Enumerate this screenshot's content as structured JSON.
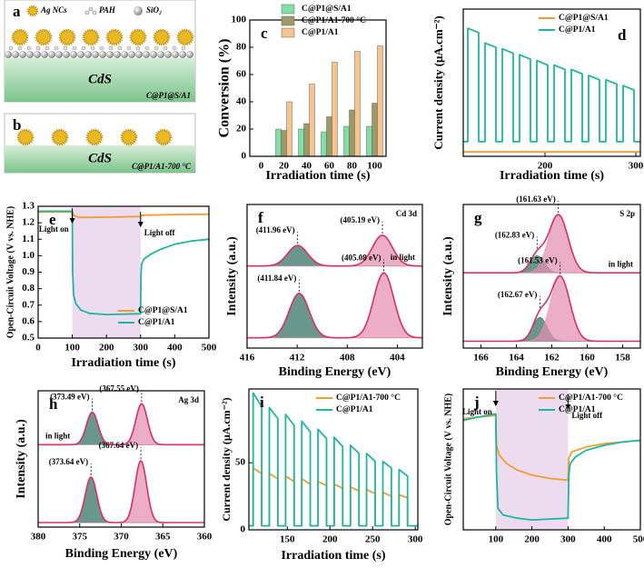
{
  "schematics": [
    {
      "panel": "a",
      "legend": [
        "Ag NCs",
        "PAH",
        "SiO₂"
      ],
      "substrate": "CdS",
      "sample": "C@P1@S/A1"
    },
    {
      "panel": "b",
      "substrate": "CdS",
      "sample": "C@P1/A1-700 °C"
    }
  ],
  "chart_data": [
    {
      "panel": "c",
      "type": "bar",
      "xlabel": "Irradiation time (s)",
      "ylabel": "Conversion (%)",
      "categories": [
        "0",
        "20",
        "40",
        "60",
        "80",
        "100"
      ],
      "series": [
        {
          "name": "C@P1@S/A1",
          "color": "#7ee0a6",
          "values": [
            0,
            20,
            20,
            18,
            22,
            22
          ]
        },
        {
          "name": "C@P1/A1-700 °C",
          "color": "#9c9a68",
          "values": [
            0,
            19,
            24,
            29,
            34,
            39
          ]
        },
        {
          "name": "C@P1/A1",
          "color": "#f6c48c",
          "values": [
            0,
            40,
            53,
            69,
            77,
            81
          ]
        }
      ],
      "ylim": [
        0,
        100
      ],
      "yticks": [
        0,
        20,
        40,
        60,
        80,
        100
      ],
      "legend": "upper center"
    },
    {
      "panel": "d",
      "type": "line",
      "xlabel": "Irradiation time (s)",
      "ylabel": "Current density (μA.cm⁻²)",
      "xlim": [
        110,
        305
      ],
      "xticks": [
        200,
        300
      ],
      "ylim": [
        0,
        100
      ],
      "legend": "upper right",
      "series": [
        {
          "name": "C@P1@S/A1",
          "color": "#f39c32",
          "x": [
            110,
            305
          ],
          "values": [
            3,
            3
          ]
        },
        {
          "name": "C@P1/A1",
          "color": "#1fb5a3",
          "x": [
            110,
            115,
            115,
            127,
            127,
            134,
            134,
            146,
            146,
            153,
            153,
            165,
            165,
            172,
            172,
            184,
            184,
            191,
            191,
            203,
            203,
            210,
            210,
            222,
            222,
            229,
            229,
            241,
            241,
            248,
            248,
            260,
            260,
            267,
            267,
            279,
            279,
            286,
            286,
            298,
            298,
            305
          ],
          "values": [
            10,
            10,
            87,
            84,
            10,
            10,
            77,
            74,
            10,
            10,
            73,
            70,
            10,
            10,
            69,
            66,
            10,
            10,
            65,
            62,
            10,
            10,
            62,
            59,
            10,
            10,
            59,
            56,
            10,
            10,
            55,
            52,
            10,
            10,
            52,
            49,
            10,
            10,
            48,
            45,
            10,
            10
          ]
        }
      ]
    },
    {
      "panel": "e",
      "type": "line",
      "xlabel": "Irradiation time (s)",
      "ylabel": "Open-Circuit Voltage (V vs. NHE)",
      "xlim": [
        0,
        500
      ],
      "xticks": [
        0,
        100,
        200,
        300,
        400,
        500
      ],
      "ylim": [
        0.5,
        1.3
      ],
      "yticks": [
        0.5,
        0.6,
        0.7,
        0.8,
        0.9,
        {
          "value": 1,
          "label": "1.0"
        },
        1.1,
        1.2,
        1.3
      ],
      "legend": "lower right",
      "shade": [
        100,
        300
      ],
      "annotations": [
        "Light on",
        "Light off"
      ],
      "series": [
        {
          "name": "C@P1@S/A1",
          "color": "#f39c32",
          "x": [
            0,
            100,
            105,
            120,
            200,
            300,
            305,
            400,
            500
          ],
          "values": [
            1.265,
            1.265,
            1.245,
            1.232,
            1.234,
            1.238,
            1.246,
            1.25,
            1.252
          ]
        },
        {
          "name": "C@P1/A1",
          "color": "#1fb5a3",
          "x": [
            0,
            100,
            101,
            104,
            110,
            125,
            150,
            200,
            250,
            300,
            301,
            303,
            310,
            330,
            360,
            400,
            450,
            500
          ],
          "values": [
            1.27,
            1.27,
            0.9,
            0.76,
            0.71,
            0.67,
            0.65,
            0.643,
            0.645,
            0.648,
            0.88,
            0.95,
            0.98,
            1.01,
            1.04,
            1.07,
            1.09,
            1.1
          ]
        }
      ]
    },
    {
      "panel": "f",
      "type": "xps",
      "tag": "Cd 3d",
      "xlabel": "Binding Energy (eV)",
      "ylabel": "Intensity (a.u.)",
      "xlim": [
        416,
        402
      ],
      "xticks": [
        416,
        412,
        408,
        404
      ],
      "ylim": [
        0,
        2.1
      ],
      "spectra": [
        {
          "label": "in light",
          "offset": 1.2,
          "color": "#d9305f",
          "peaks": [
            {
              "center": 411.96,
              "label": "(411.96 eV)",
              "height": 0.3,
              "width": 0.8,
              "color": "#2f6f62"
            },
            {
              "center": 405.19,
              "label": "(405.19 eV)",
              "height": 0.45,
              "width": 0.8,
              "color": "#e58fb0"
            }
          ]
        },
        {
          "offset": 0.15,
          "color": "#d9305f",
          "peaks": [
            {
              "center": 411.84,
              "label": "(411.84 eV)",
              "height": 0.65,
              "width": 0.8,
              "color": "#2f6f62"
            },
            {
              "center": 405.08,
              "label": "(405.08 eV)",
              "height": 0.95,
              "width": 0.8,
              "color": "#e58fb0"
            }
          ]
        }
      ]
    },
    {
      "panel": "g",
      "type": "xps",
      "tag": "S 2p",
      "xlabel": "Binding Energy (eV)",
      "ylabel": "Intensity (a.u.)",
      "xlim": [
        167,
        157
      ],
      "xticks": [
        166,
        164,
        162,
        160,
        158
      ],
      "ylim": [
        0,
        2.1
      ],
      "spectra": [
        {
          "label": "in light",
          "offset": 1.1,
          "color": "#d9305f",
          "peaks": [
            {
              "center": 162.83,
              "label": "(162.83 eV)",
              "height": 0.25,
              "width": 0.4,
              "color": "#2f6f62"
            },
            {
              "center": 161.63,
              "label": "(161.63 eV)",
              "height": 0.85,
              "width": 0.55,
              "color": "#e58fb0"
            }
          ]
        },
        {
          "offset": 0.1,
          "color": "#d9305f",
          "peaks": [
            {
              "center": 162.67,
              "label": "(162.67 eV)",
              "height": 0.35,
              "width": 0.4,
              "color": "#2f6f62"
            },
            {
              "center": 161.53,
              "label": "(161.53 eV)",
              "height": 0.95,
              "width": 0.55,
              "color": "#e58fb0"
            }
          ]
        }
      ]
    },
    {
      "panel": "h",
      "type": "xps",
      "tag": "Ag 3d",
      "xlabel": "Binding Energy (eV)",
      "ylabel": "Intensity (a.u.)",
      "xlim": [
        380,
        360
      ],
      "xticks": [
        380,
        375,
        370,
        365,
        360
      ],
      "ylim": [
        0,
        2.1
      ],
      "spectra": [
        {
          "label": "in light",
          "offset": 1.27,
          "color": "#d9305f",
          "peaks": [
            {
              "center": 373.49,
              "label": "(373.49 eV)",
              "height": 0.5,
              "width": 0.7,
              "color": "#2f6f62"
            },
            {
              "center": 367.55,
              "label": "(367.55 eV)",
              "height": 0.63,
              "width": 0.7,
              "color": "#e58fb0"
            }
          ]
        },
        {
          "offset": 0.07,
          "color": "#d9305f",
          "peaks": [
            {
              "center": 373.64,
              "label": "(373.64 eV)",
              "height": 0.7,
              "width": 0.7,
              "color": "#2f6f62"
            },
            {
              "center": 367.64,
              "label": "(367.64 eV)",
              "height": 0.95,
              "width": 0.7,
              "color": "#e58fb0"
            }
          ]
        }
      ]
    },
    {
      "panel": "i",
      "type": "line",
      "xlabel": "Irradiation time (s)",
      "ylabel": "Current density (μA.cm⁻²)",
      "xlim": [
        105,
        303
      ],
      "xticks": [
        150,
        200,
        250,
        300
      ],
      "ylim": [
        0,
        105
      ],
      "yticks": [
        0,
        50
      ],
      "legend": "upper right",
      "series": [
        {
          "name": "C@P1/A1-700 °C",
          "color": "#f39c32",
          "x": [
            105,
            110,
            110,
            120,
            120,
            129,
            129,
            139,
            139,
            148,
            148,
            158,
            158,
            167,
            167,
            177,
            177,
            186,
            186,
            196,
            196,
            205,
            205,
            215,
            215,
            224,
            224,
            234,
            234,
            243,
            243,
            253,
            253,
            262,
            262,
            272,
            272,
            281,
            281,
            291,
            291,
            303
          ],
          "values": [
            3,
            3,
            46,
            42,
            3,
            3,
            42,
            38,
            3,
            3,
            40,
            36,
            3,
            3,
            38,
            34,
            3,
            3,
            36,
            33,
            3,
            3,
            34,
            31,
            3,
            3,
            32,
            29,
            3,
            3,
            30,
            27,
            3,
            3,
            28,
            25,
            3,
            3,
            26,
            24,
            3,
            3
          ]
        },
        {
          "name": "C@P1/A1",
          "color": "#1fb5a3",
          "x": [
            105,
            110,
            110,
            120,
            120,
            129,
            129,
            139,
            139,
            148,
            148,
            158,
            158,
            167,
            167,
            177,
            177,
            186,
            186,
            196,
            196,
            205,
            205,
            215,
            215,
            224,
            224,
            234,
            234,
            243,
            243,
            253,
            253,
            262,
            262,
            272,
            272,
            281,
            281,
            291,
            291,
            303
          ],
          "values": [
            3,
            3,
            102,
            92,
            3,
            3,
            91,
            83,
            3,
            3,
            86,
            78,
            3,
            3,
            81,
            73,
            3,
            3,
            75,
            68,
            3,
            3,
            69,
            62,
            3,
            3,
            63,
            57,
            3,
            3,
            57,
            51,
            3,
            3,
            51,
            46,
            3,
            3,
            45,
            40,
            3,
            3
          ]
        }
      ]
    },
    {
      "panel": "j",
      "type": "line",
      "ylabel": "Open-Circuit Voltage (V vs. NHE)",
      "xlim": [
        10,
        500
      ],
      "xticks": [
        100,
        200,
        300,
        400,
        500
      ],
      "ylim": [
        -0.25,
        0.6
      ],
      "legend": "upper right",
      "shade": [
        100,
        300
      ],
      "annotations": [
        "Light on",
        "Light off"
      ],
      "series": [
        {
          "name": "C@P1/A1-700 °C",
          "color": "#f39c32",
          "x": [
            10,
            50,
            100,
            102,
            110,
            130,
            160,
            200,
            250,
            300,
            302,
            310,
            350,
            400,
            450,
            500
          ],
          "values": [
            0.42,
            0.43,
            0.44,
            0.26,
            0.2,
            0.15,
            0.11,
            0.08,
            0.06,
            0.05,
            0.18,
            0.22,
            0.25,
            0.27,
            0.28,
            0.29
          ]
        },
        {
          "name": "C@P1/A1",
          "color": "#1fb5a3",
          "x": [
            10,
            50,
            100,
            102,
            106,
            120,
            160,
            200,
            250,
            300,
            302,
            306,
            320,
            350,
            400,
            450,
            500
          ],
          "values": [
            0.41,
            0.43,
            0.45,
            0.1,
            -0.12,
            -0.16,
            -0.18,
            -0.19,
            -0.185,
            -0.18,
            0.08,
            0.15,
            0.19,
            0.23,
            0.26,
            0.28,
            0.29
          ]
        }
      ]
    }
  ]
}
